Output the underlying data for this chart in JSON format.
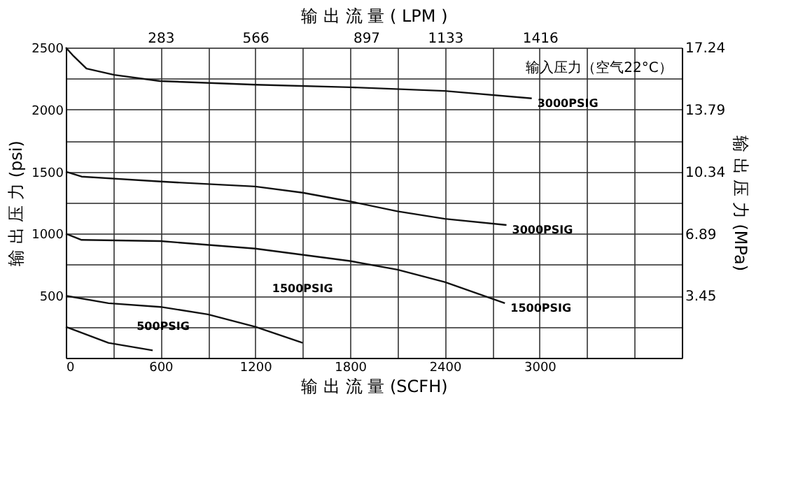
{
  "chart_data": {
    "type": "line",
    "xlabel": "输 出 流 量 (SCFH)",
    "x2label": "输 出 流 量 ( LPM )",
    "ylabel": "输 出 压 力 (psi)",
    "y2label": "输 出 压 力 (MPa)",
    "xlim": [
      0,
      3900
    ],
    "xticks": [
      0,
      {
        "value": 300,
        "label": null
      },
      600,
      {
        "value": 900,
        "label": null
      },
      1200,
      {
        "value": 1500,
        "label": null
      },
      1800,
      {
        "value": 2100,
        "label": null
      },
      2400,
      {
        "value": 2700,
        "label": null
      },
      3000,
      {
        "value": 3300,
        "label": null
      },
      {
        "value": 3600,
        "label": null
      }
    ],
    "x2lim": [
      0,
      1840
    ],
    "x2ticks": [
      283,
      566,
      897,
      1133,
      1416
    ],
    "ylim": [
      0,
      2500
    ],
    "yticks": [
      {
        "value": 250,
        "label": null
      },
      500,
      {
        "value": 750,
        "label": null
      },
      1000,
      {
        "value": 1250,
        "label": null
      },
      1500,
      {
        "value": 1750,
        "label": null
      },
      2000,
      {
        "value": 2250,
        "label": null
      },
      2500
    ],
    "y2lim": [
      0,
      17.24
    ],
    "y2ticks": [
      3.45,
      6.89,
      10.34,
      13.79,
      17.24
    ],
    "grid": true,
    "series": [
      {
        "color": "#111111",
        "x": [
          0,
          50,
          131,
          306,
          595,
          1207,
          1800,
          2400,
          2950
        ],
        "values": [
          2500,
          2430,
          2330,
          2280,
          2230,
          2200,
          2180,
          2150,
          2090
        ]
      },
      {
        "color": "#111111",
        "x": [
          0,
          100,
          600,
          1200,
          1500,
          1800,
          2100,
          2400,
          2790
        ],
        "values": [
          1500,
          1460,
          1420,
          1380,
          1330,
          1260,
          1180,
          1120,
          1070
        ]
      },
      {
        "color": "#111111",
        "x": [
          0,
          100,
          600,
          1200,
          1800,
          2100,
          2400,
          2780
        ],
        "values": [
          1000,
          950,
          940,
          880,
          780,
          710,
          610,
          440
        ]
      },
      {
        "color": "#111111",
        "x": [
          0,
          270,
          600,
          900,
          1200,
          1500
        ],
        "values": [
          500,
          440,
          410,
          350,
          250,
          120
        ]
      },
      {
        "color": "#111111",
        "x": [
          0,
          270,
          550
        ],
        "values": [
          250,
          120,
          60
        ]
      }
    ],
    "annotations": [
      {
        "text": "3000PSIG",
        "x": 2950,
        "y": 2090
      },
      {
        "text": "3000PSIG",
        "x": 2790,
        "y": 1070
      },
      {
        "text": "1500PSIG",
        "x": 2780,
        "y": 440
      },
      "1500PSIG",
      "500PSIG",
      "输入压力（空气22°C）"
    ]
  }
}
